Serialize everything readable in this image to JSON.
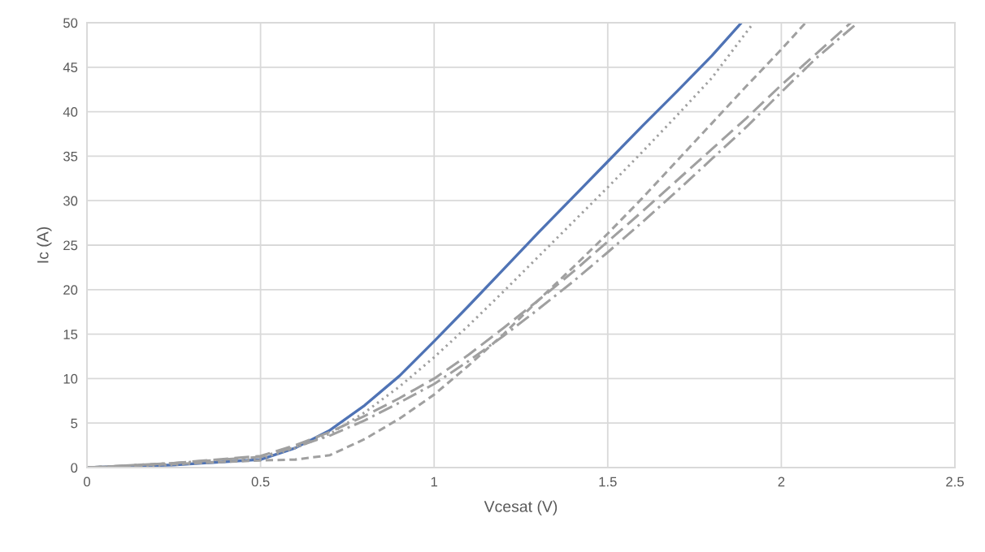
{
  "chart_data": {
    "type": "line",
    "xlabel": "Vcesat (V)",
    "ylabel": "Ic (A)",
    "xlim": [
      0,
      2.5
    ],
    "xticks": [
      0,
      {
        "value": 0.5,
        "label": "0.5"
      },
      1,
      {
        "value": 1.5,
        "label": "1.5"
      },
      2,
      {
        "value": 2.5,
        "label": "2.5"
      }
    ],
    "ylim": [
      0,
      50
    ],
    "yticks": [
      0,
      5,
      10,
      15,
      20,
      25,
      30,
      35,
      40,
      45,
      50
    ],
    "grid": true,
    "marker": "none",
    "series": [
      {
        "color": "#4f73b5",
        "line_style": "solid",
        "x": [
          0,
          0.25,
          0.5,
          0.6,
          0.7,
          0.8,
          0.9,
          1.0,
          1.1,
          1.2,
          1.3,
          1.4,
          1.5,
          1.6,
          1.7,
          1.8,
          1.885
        ],
        "values": [
          0,
          0.3,
          0.9,
          2.2,
          4.2,
          7,
          10.3,
          14.2,
          18.2,
          22.3,
          26.4,
          30.4,
          34.4,
          38.4,
          42.3,
          46.3,
          50
        ]
      },
      {
        "color": "#a0a0a0",
        "line_style": "dotted",
        "x": [
          0,
          0.25,
          0.5,
          0.6,
          0.7,
          0.8,
          0.9,
          1.0,
          1.1,
          1.2,
          1.3,
          1.4,
          1.5,
          1.6,
          1.7,
          1.8,
          1.92
        ],
        "values": [
          0,
          0.3,
          1.0,
          2.2,
          3.8,
          6.2,
          9.1,
          12.4,
          16,
          19.8,
          23.7,
          27.6,
          31.5,
          35.5,
          39.6,
          43.8,
          50
        ]
      },
      {
        "color": "#a0a0a0",
        "line_style": "dashed",
        "x": [
          0,
          0.25,
          0.5,
          0.6,
          0.7,
          0.8,
          0.9,
          1.0,
          1.1,
          1.2,
          1.3,
          1.4,
          1.5,
          1.6,
          1.7,
          1.8,
          1.9,
          2.0,
          2.07
        ],
        "values": [
          0,
          0.4,
          0.8,
          0.9,
          1.4,
          3.2,
          5.5,
          8.2,
          11.5,
          15,
          18.8,
          22.5,
          26.3,
          30.3,
          34.5,
          38.7,
          42.9,
          47,
          50
        ]
      },
      {
        "color": "#a0a0a0",
        "line_style": "longdash",
        "x": [
          0,
          0.25,
          0.5,
          0.6,
          0.7,
          0.8,
          0.9,
          1.0,
          1.1,
          1.2,
          1.3,
          1.4,
          1.5,
          1.6,
          1.7,
          1.8,
          1.9,
          2.0,
          2.1,
          2.2
        ],
        "values": [
          0,
          0.5,
          1.3,
          2.5,
          4,
          5.8,
          7.8,
          10,
          12.7,
          15.7,
          18.8,
          22,
          25.4,
          28.8,
          32.3,
          35.8,
          39.3,
          43,
          46.5,
          50
        ]
      },
      {
        "color": "#a0a0a0",
        "line_style": "dashdot",
        "x": [
          0,
          0.25,
          0.5,
          0.6,
          0.7,
          0.8,
          0.9,
          1.0,
          1.1,
          1.2,
          1.3,
          1.4,
          1.5,
          1.6,
          1.7,
          1.8,
          1.9,
          2.0,
          2.1,
          2.22
        ],
        "values": [
          0,
          0.5,
          1.2,
          2.3,
          3.6,
          5.3,
          7.3,
          9.4,
          12,
          14.8,
          17.8,
          20.9,
          24.2,
          27.6,
          31.1,
          34.7,
          38.3,
          42.2,
          46,
          50
        ]
      }
    ]
  }
}
